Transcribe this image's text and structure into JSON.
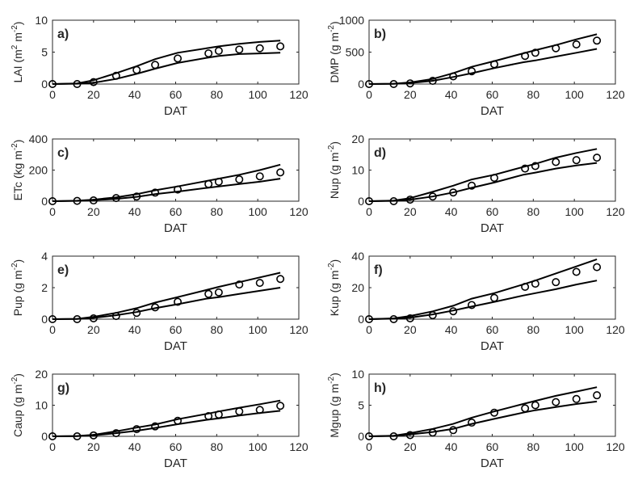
{
  "chart_data": [
    {
      "type": "line",
      "panel": "a)",
      "xlabel": "DAT",
      "ylabel": {
        "base": "LAI (m",
        "sup1": "2",
        "mid": " m",
        "sup2": "-2",
        "end": ")"
      },
      "xlim": [
        0,
        120
      ],
      "ylim": [
        0,
        10
      ],
      "xticks": [
        0,
        20,
        40,
        60,
        80,
        100,
        120
      ],
      "yticks": [
        0,
        5,
        10
      ],
      "upper": {
        "x": [
          0,
          12,
          20,
          31,
          41,
          50,
          61,
          75,
          81,
          91,
          101,
          111
        ],
        "y": [
          0,
          0.1,
          0.6,
          1.7,
          2.8,
          3.9,
          4.9,
          5.6,
          5.9,
          6.3,
          6.6,
          6.8
        ]
      },
      "lower": {
        "x": [
          0,
          12,
          20,
          31,
          41,
          50,
          61,
          75,
          81,
          91,
          101,
          111
        ],
        "y": [
          0,
          0.05,
          0.2,
          0.8,
          1.6,
          2.4,
          3.3,
          4.1,
          4.4,
          4.7,
          4.8,
          4.9
        ]
      },
      "observed": {
        "x": [
          0,
          12,
          20,
          31,
          41,
          50,
          61,
          76,
          81,
          91,
          101,
          111
        ],
        "y": [
          0,
          0,
          0.3,
          1.3,
          2.2,
          3.0,
          4.0,
          4.8,
          5.2,
          5.4,
          5.6,
          5.9
        ]
      }
    },
    {
      "type": "line",
      "panel": "b)",
      "xlabel": "DAT",
      "ylabel": {
        "base": "DMP (g m",
        "sup1": "-2",
        "end": ")"
      },
      "xlim": [
        0,
        120
      ],
      "ylim": [
        0,
        1000
      ],
      "xticks": [
        0,
        20,
        40,
        60,
        80,
        100,
        120
      ],
      "yticks": [
        0,
        500,
        1000
      ],
      "upper": {
        "x": [
          0,
          12,
          20,
          31,
          41,
          50,
          61,
          75,
          81,
          91,
          101,
          111
        ],
        "y": [
          0,
          5,
          25,
          80,
          170,
          270,
          360,
          480,
          530,
          610,
          700,
          780
        ]
      },
      "lower": {
        "x": [
          0,
          12,
          20,
          31,
          41,
          50,
          61,
          75,
          81,
          91,
          101,
          111
        ],
        "y": [
          0,
          3,
          15,
          50,
          110,
          170,
          250,
          340,
          370,
          430,
          490,
          550
        ]
      },
      "observed": {
        "x": [
          0,
          12,
          20,
          31,
          41,
          50,
          61,
          76,
          81,
          91,
          101,
          111
        ],
        "y": [
          0,
          0,
          10,
          50,
          120,
          200,
          310,
          440,
          490,
          560,
          620,
          680
        ]
      }
    },
    {
      "type": "line",
      "panel": "c)",
      "xlabel": "DAT",
      "ylabel": {
        "base": "ETc (kg m",
        "sup1": "-2",
        "end": ")"
      },
      "xlim": [
        0,
        120
      ],
      "ylim": [
        0,
        400
      ],
      "xticks": [
        0,
        20,
        40,
        60,
        80,
        100,
        120
      ],
      "yticks": [
        0,
        200,
        400
      ],
      "upper": {
        "x": [
          0,
          12,
          20,
          31,
          41,
          50,
          61,
          75,
          81,
          91,
          101,
          111
        ],
        "y": [
          0,
          3,
          10,
          25,
          45,
          70,
          95,
          130,
          145,
          170,
          200,
          235
        ]
      },
      "lower": {
        "x": [
          0,
          12,
          20,
          31,
          41,
          50,
          61,
          75,
          81,
          91,
          101,
          111
        ],
        "y": [
          0,
          2,
          6,
          15,
          28,
          45,
          62,
          85,
          95,
          110,
          125,
          145
        ]
      },
      "observed": {
        "x": [
          0,
          12,
          20,
          31,
          41,
          50,
          61,
          76,
          81,
          91,
          101,
          111
        ],
        "y": [
          0,
          2,
          5,
          20,
          30,
          55,
          75,
          110,
          125,
          140,
          160,
          185
        ]
      }
    },
    {
      "type": "line",
      "panel": "d)",
      "xlabel": "DAT",
      "ylabel": {
        "base": "Nup (g m",
        "sup1": "-2",
        "end": ")"
      },
      "xlim": [
        0,
        120
      ],
      "ylim": [
        0,
        20
      ],
      "xticks": [
        0,
        20,
        40,
        60,
        80,
        100,
        120
      ],
      "yticks": [
        0,
        10,
        20
      ],
      "upper": {
        "x": [
          0,
          12,
          20,
          31,
          41,
          50,
          61,
          75,
          81,
          91,
          101,
          111
        ],
        "y": [
          0,
          0.2,
          1.0,
          3.0,
          5.0,
          7.0,
          8.5,
          11.0,
          12.0,
          14.0,
          15.5,
          16.8
        ]
      },
      "lower": {
        "x": [
          0,
          12,
          20,
          31,
          41,
          50,
          61,
          75,
          81,
          91,
          101,
          111
        ],
        "y": [
          0,
          0.1,
          0.5,
          1.5,
          2.8,
          4.3,
          6.0,
          8.5,
          9.2,
          10.5,
          11.5,
          12.3
        ]
      },
      "observed": {
        "x": [
          0,
          12,
          20,
          31,
          41,
          50,
          61,
          76,
          81,
          91,
          101,
          111
        ],
        "y": [
          0,
          0,
          0.5,
          1.5,
          2.8,
          5.0,
          7.5,
          10.5,
          11.3,
          12.6,
          13.2,
          14.0
        ]
      }
    },
    {
      "type": "line",
      "panel": "e)",
      "xlabel": "DAT",
      "ylabel": {
        "base": "Pup (g m",
        "sup1": "-2",
        "end": ")"
      },
      "xlim": [
        0,
        120
      ],
      "ylim": [
        0,
        4
      ],
      "xticks": [
        0,
        20,
        40,
        60,
        80,
        100,
        120
      ],
      "yticks": [
        0,
        2,
        4
      ],
      "upper": {
        "x": [
          0,
          12,
          20,
          31,
          41,
          50,
          61,
          75,
          81,
          91,
          101,
          111
        ],
        "y": [
          0,
          0.02,
          0.15,
          0.4,
          0.7,
          1.05,
          1.4,
          1.85,
          2.05,
          2.35,
          2.65,
          2.95
        ]
      },
      "lower": {
        "x": [
          0,
          12,
          20,
          31,
          41,
          50,
          61,
          75,
          81,
          91,
          101,
          111
        ],
        "y": [
          0,
          0.01,
          0.08,
          0.25,
          0.45,
          0.7,
          0.95,
          1.3,
          1.4,
          1.6,
          1.8,
          2.0
        ]
      },
      "observed": {
        "x": [
          0,
          12,
          20,
          31,
          41,
          50,
          61,
          76,
          81,
          91,
          101,
          111
        ],
        "y": [
          0,
          0,
          0.05,
          0.2,
          0.4,
          0.75,
          1.1,
          1.6,
          1.7,
          2.2,
          2.3,
          2.55
        ]
      }
    },
    {
      "type": "line",
      "panel": "f)",
      "xlabel": "DAT",
      "ylabel": {
        "base": "Kup (g m",
        "sup1": "-2",
        "end": ")"
      },
      "xlim": [
        0,
        120
      ],
      "ylim": [
        0,
        40
      ],
      "xticks": [
        0,
        20,
        40,
        60,
        80,
        100,
        120
      ],
      "yticks": [
        0,
        20,
        40
      ],
      "upper": {
        "x": [
          0,
          12,
          20,
          31,
          41,
          50,
          61,
          75,
          81,
          91,
          101,
          111
        ],
        "y": [
          0,
          0.5,
          2.0,
          5.0,
          8.5,
          13.0,
          16.5,
          22.0,
          24.5,
          29.0,
          33.5,
          38.0
        ]
      },
      "lower": {
        "x": [
          0,
          12,
          20,
          31,
          41,
          50,
          61,
          75,
          81,
          91,
          101,
          111
        ],
        "y": [
          0,
          0.3,
          1.0,
          3.0,
          5.5,
          8.0,
          11.0,
          15.0,
          16.5,
          19.0,
          22.0,
          24.5
        ]
      },
      "observed": {
        "x": [
          0,
          12,
          20,
          31,
          41,
          50,
          61,
          76,
          81,
          91,
          101,
          111
        ],
        "y": [
          0,
          0,
          0.5,
          2.5,
          5.0,
          9.0,
          13.5,
          20.5,
          22.5,
          23.5,
          30.0,
          33.0
        ]
      }
    },
    {
      "type": "line",
      "panel": "g)",
      "xlabel": "DAT",
      "ylabel": {
        "base": "Caup (g m",
        "sup1": "-2",
        "end": ")"
      },
      "xlim": [
        0,
        120
      ],
      "ylim": [
        0,
        20
      ],
      "xticks": [
        0,
        20,
        40,
        60,
        80,
        100,
        120
      ],
      "yticks": [
        0,
        10,
        20
      ],
      "upper": {
        "x": [
          0,
          12,
          20,
          31,
          41,
          50,
          61,
          75,
          81,
          91,
          101,
          111
        ],
        "y": [
          0,
          0.1,
          0.5,
          1.6,
          2.8,
          3.8,
          5.5,
          7.2,
          8.0,
          9.2,
          10.3,
          11.5
        ]
      },
      "lower": {
        "x": [
          0,
          12,
          20,
          31,
          41,
          50,
          61,
          75,
          81,
          91,
          101,
          111
        ],
        "y": [
          0,
          0.05,
          0.3,
          1.0,
          1.8,
          2.7,
          3.9,
          5.3,
          5.8,
          6.7,
          7.5,
          8.2
        ]
      },
      "observed": {
        "x": [
          0,
          12,
          20,
          31,
          41,
          50,
          61,
          76,
          81,
          91,
          101,
          111
        ],
        "y": [
          0,
          0,
          0.3,
          1.0,
          2.3,
          3.2,
          5.0,
          6.5,
          7.0,
          8.0,
          8.5,
          9.8
        ]
      }
    },
    {
      "type": "line",
      "panel": "h)",
      "xlabel": "DAT",
      "ylabel": {
        "base": "Mgup (g m",
        "sup1": "-2",
        "end": ")"
      },
      "xlim": [
        0,
        120
      ],
      "ylim": [
        0,
        10
      ],
      "xticks": [
        0,
        20,
        40,
        60,
        80,
        100,
        120
      ],
      "yticks": [
        0,
        5,
        10
      ],
      "upper": {
        "x": [
          0,
          12,
          20,
          31,
          41,
          50,
          61,
          75,
          81,
          91,
          101,
          111
        ],
        "y": [
          0,
          0.1,
          0.5,
          1.2,
          2.0,
          3.0,
          4.0,
          5.2,
          5.7,
          6.5,
          7.2,
          7.9
        ]
      },
      "lower": {
        "x": [
          0,
          12,
          20,
          31,
          41,
          50,
          61,
          75,
          81,
          91,
          101,
          111
        ],
        "y": [
          0,
          0.05,
          0.3,
          0.7,
          1.2,
          2.0,
          2.8,
          3.8,
          4.2,
          4.7,
          5.2,
          5.6
        ]
      },
      "observed": {
        "x": [
          0,
          12,
          20,
          31,
          41,
          50,
          61,
          76,
          81,
          91,
          101,
          111
        ],
        "y": [
          0,
          0,
          0.2,
          0.6,
          1.0,
          2.2,
          3.8,
          4.5,
          5.0,
          5.5,
          6.0,
          6.6
        ]
      }
    }
  ]
}
